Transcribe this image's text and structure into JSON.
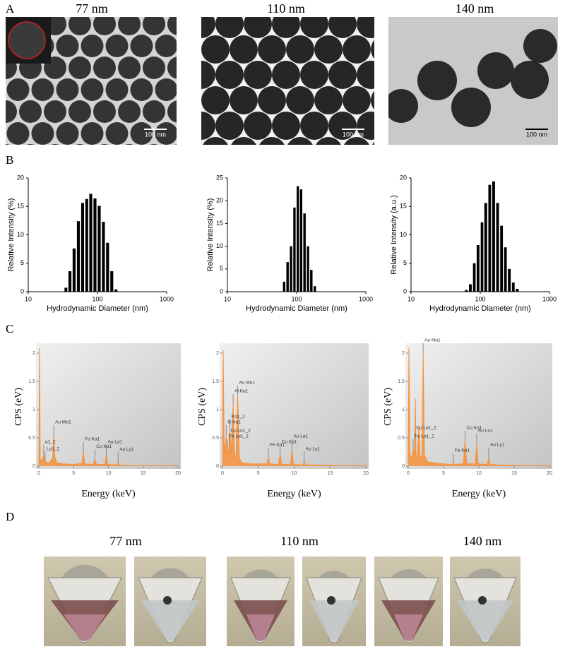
{
  "panel_labels": [
    "A",
    "B",
    "C",
    "D"
  ],
  "tem": {
    "titles": [
      "77 nm",
      "110 nm",
      "140 nm"
    ],
    "scale_bars": [
      "100 nm",
      "100 nm",
      "100 nm"
    ]
  },
  "vials": {
    "titles": [
      "77 nm",
      "110 nm",
      "140 nm"
    ]
  },
  "chart_data": [
    {
      "type": "bar",
      "log_x": true,
      "color": "#000000",
      "x": [
        35,
        40,
        46,
        53,
        61,
        70,
        80,
        92,
        106,
        122,
        140,
        161,
        185
      ],
      "values": [
        0.7,
        3.6,
        7.6,
        12.4,
        15.6,
        16.3,
        17.2,
        16.4,
        15.1,
        12.3,
        8.6,
        3.6,
        0.4
      ],
      "xlim": [
        10,
        1000
      ],
      "xticks": [
        10,
        100,
        1000
      ],
      "ylim": [
        0,
        20
      ],
      "yticks": [
        0,
        5,
        10,
        15,
        20
      ],
      "xlabel": "Hydrodynamic Diameter (nm)",
      "ylabel": "Relative Intensity (%)"
    },
    {
      "type": "bar",
      "log_x": true,
      "color": "#000000",
      "x": [
        66,
        74,
        83,
        93,
        104,
        116,
        130,
        146,
        163,
        183
      ],
      "values": [
        2.2,
        6.5,
        10,
        18.5,
        23.2,
        22.5,
        17.2,
        10,
        4.8,
        1.2
      ],
      "xlim": [
        10,
        1000
      ],
      "xticks": [
        10,
        100,
        1000
      ],
      "ylim": [
        0,
        25
      ],
      "yticks": [
        0,
        5,
        10,
        15,
        20,
        25
      ],
      "xlabel": "Hydrodynamic Diameter (nm)",
      "ylabel": "Relative Intensity (%)"
    },
    {
      "type": "bar",
      "log_x": true,
      "color": "#000000",
      "x": [
        63,
        72,
        82,
        93,
        106,
        120,
        137,
        156,
        178,
        203,
        231,
        263,
        300,
        342
      ],
      "values": [
        0.3,
        1.3,
        5,
        8.2,
        12.2,
        15.6,
        18.8,
        19.4,
        15.6,
        11.6,
        7.8,
        4,
        1.6,
        0.5
      ],
      "xlim": [
        10,
        1000
      ],
      "xticks": [
        10,
        100,
        1000
      ],
      "ylim": [
        0,
        20
      ],
      "yticks": [
        0,
        5,
        10,
        15,
        20
      ],
      "xlabel": "Hydrodynamic Diameter (nm)",
      "ylabel": "Relative Intensity (a.u.)"
    },
    {
      "type": "area",
      "color": "#f5913a",
      "x": [
        0,
        0.1,
        0.2,
        0.5,
        0.7,
        0.9,
        1.5,
        2.0,
        2.15,
        2.3,
        2.6,
        3.5,
        5,
        6.2,
        6.4,
        6.6,
        7.8,
        8.05,
        8.3,
        9.5,
        9.7,
        9.9,
        11.2,
        11.4,
        11.6,
        13,
        16,
        20
      ],
      "values": [
        0.02,
        2.1,
        0.1,
        0.12,
        0.2,
        0.08,
        0.05,
        0.15,
        0.55,
        0.15,
        0.06,
        0.04,
        0.03,
        0.05,
        0.25,
        0.04,
        0.03,
        0.12,
        0.03,
        0.03,
        0.2,
        0.03,
        0.02,
        0.07,
        0.02,
        0.01,
        0.01,
        0.01
      ],
      "xlim": [
        0,
        20
      ],
      "xticks": [
        0,
        5,
        10,
        15,
        20
      ],
      "ylim": [
        0,
        2.1
      ],
      "yticks": [
        0,
        0.5,
        1,
        1.5,
        2
      ],
      "xlabel": "Energy (keV)",
      "ylabel": "CPS (eV)",
      "annotations": [
        {
          "text": "α1_2",
          "x": 0.7,
          "y": 0.2
        },
        {
          "text": "Lα1_2",
          "x": 0.9,
          "y": 0.08
        },
        {
          "text": "Au Mα1",
          "x": 2.15,
          "y": 0.55
        },
        {
          "text": "Fe Kα1",
          "x": 6.4,
          "y": 0.25
        },
        {
          "text": "Cu Kα1",
          "x": 8.05,
          "y": 0.12
        },
        {
          "text": "Au Lα1",
          "x": 9.7,
          "y": 0.2
        },
        {
          "text": "Au Lγ1",
          "x": 11.4,
          "y": 0.07
        }
      ]
    },
    {
      "type": "area",
      "color": "#f5913a",
      "x": [
        0,
        0.1,
        0.25,
        0.52,
        0.6,
        0.7,
        0.8,
        0.93,
        1.05,
        1.2,
        1.49,
        1.7,
        1.9,
        2.12,
        2.35,
        2.7,
        4,
        6.2,
        6.4,
        6.6,
        7.8,
        8.05,
        8.3,
        9.5,
        9.7,
        9.9,
        11.2,
        11.4,
        11.6,
        13,
        16,
        20
      ],
      "values": [
        0.05,
        2.05,
        0.2,
        0.55,
        0.2,
        0.3,
        0.2,
        0.4,
        0.65,
        0.2,
        1.1,
        0.15,
        0.2,
        1.25,
        0.15,
        0.06,
        0.04,
        0.04,
        0.15,
        0.04,
        0.03,
        0.2,
        0.03,
        0.03,
        0.3,
        0.03,
        0.02,
        0.08,
        0.02,
        0.02,
        0.01,
        0.01
      ],
      "xlim": [
        0,
        20
      ],
      "xticks": [
        0,
        5,
        10,
        15,
        20
      ],
      "ylim": [
        0,
        2.1
      ],
      "yticks": [
        0,
        0.5,
        1,
        1.5,
        2
      ],
      "xlabel": "Energy (keV)",
      "ylabel": "CPS (eV)",
      "annotations": [
        {
          "text": "Kα1_2",
          "x": 1.05,
          "y": 0.65
        },
        {
          "text": "O Kα1",
          "x": 0.52,
          "y": 0.55
        },
        {
          "text": "Cu Lα1_2",
          "x": 0.93,
          "y": 0.4
        },
        {
          "text": "Fe Lα1_2",
          "x": 0.7,
          "y": 0.3
        },
        {
          "text": "Al Kα1",
          "x": 1.49,
          "y": 1.1
        },
        {
          "text": "Au Mα1",
          "x": 2.12,
          "y": 1.25
        },
        {
          "text": "Fe Kα1",
          "x": 6.4,
          "y": 0.15
        },
        {
          "text": "Cu Kα1",
          "x": 8.05,
          "y": 0.2
        },
        {
          "text": "Au Lα1",
          "x": 9.7,
          "y": 0.3
        },
        {
          "text": "Au Lγ1",
          "x": 11.4,
          "y": 0.08
        }
      ]
    },
    {
      "type": "area",
      "color": "#f5913a",
      "x": [
        0,
        0.1,
        0.25,
        0.5,
        0.7,
        0.85,
        0.93,
        1.0,
        1.1,
        1.3,
        1.5,
        1.7,
        1.95,
        2.12,
        2.3,
        2.7,
        4,
        6.2,
        6.4,
        6.6,
        7.8,
        8.05,
        8.3,
        9.5,
        9.7,
        9.9,
        11.2,
        11.4,
        11.6,
        13,
        16,
        20
      ],
      "values": [
        0.05,
        2.1,
        0.2,
        0.15,
        0.3,
        0.2,
        0.45,
        1.2,
        0.2,
        0.15,
        0.7,
        0.15,
        0.2,
        2.0,
        0.2,
        0.08,
        0.05,
        0.03,
        0.05,
        0.03,
        0.04,
        0.45,
        0.04,
        0.04,
        0.4,
        0.04,
        0.03,
        0.15,
        0.03,
        0.02,
        0.01,
        0.01
      ],
      "xlim": [
        0,
        20
      ],
      "xticks": [
        0,
        5,
        10,
        15,
        20
      ],
      "ylim": [
        0,
        2.1
      ],
      "yticks": [
        0,
        0.5,
        1,
        1.5,
        2
      ],
      "xlabel": "Energy (keV)",
      "ylabel": "CPS (eV)",
      "annotations": [
        {
          "text": "Au Mα1",
          "x": 2.12,
          "y": 2.0
        },
        {
          "text": "Cu Lα1_2",
          "x": 0.93,
          "y": 0.45
        },
        {
          "text": "Fe Lα1_2",
          "x": 0.7,
          "y": 0.3
        },
        {
          "text": "Fe Kα1",
          "x": 6.4,
          "y": 0.05
        },
        {
          "text": "Cu Kα1",
          "x": 8.05,
          "y": 0.45
        },
        {
          "text": "Au Lα1",
          "x": 9.7,
          "y": 0.4
        },
        {
          "text": "Au Lγ1",
          "x": 11.4,
          "y": 0.15
        }
      ]
    }
  ]
}
